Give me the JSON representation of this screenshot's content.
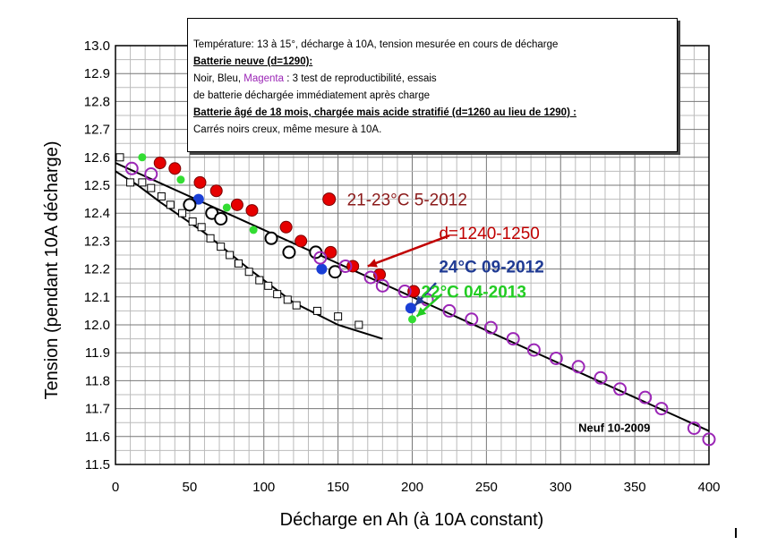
{
  "note": {
    "line1": "Température: 13 à 15°, décharge à 10A, tension mesurée en cours de décharge",
    "line2": "Batterie neuve (d=1290):",
    "line3_pre": "Noir, Bleu, ",
    "line3_mag": "Magenta",
    "line3_post": " : 3 test de reproductibilité, essais",
    "line4": "de batterie déchargée immédiatement après charge",
    "line5": "Batterie âgé de 18 mois, chargée mais acide stratifié (d=1260 au lieu de 1290) :",
    "line6": "Carrés noirs creux, même mesure à 10A."
  },
  "chart_data": {
    "type": "scatter",
    "xlabel": "Décharge en Ah (à 10A constant)",
    "ylabel": "Tension (pendant 10A décharge)",
    "xlim": [
      0,
      400
    ],
    "ylim": [
      11.5,
      13.0
    ],
    "xticks": [
      "0",
      "50",
      "100",
      "150",
      "200",
      "250",
      "300",
      "350",
      "400"
    ],
    "yticks": [
      "11.5",
      "11.6",
      "11.7",
      "11.8",
      "11.9",
      "12.0",
      "12.1",
      "12.2",
      "12.3",
      "12.4",
      "12.5",
      "12.6",
      "12.7",
      "12.8",
      "12.9",
      "13.0"
    ],
    "grid": true,
    "annotations": [
      {
        "text": "21-23°C 5-2012",
        "color": "#8b1a1a",
        "x": 156,
        "y": 12.45
      },
      {
        "text": "d=1240-1250",
        "color": "#c00000",
        "x": 218,
        "y": 12.33
      },
      {
        "text": "24°C 09-2012",
        "color": "#1f3a93",
        "x": 218,
        "y": 12.21
      },
      {
        "text": "22°C 04-2013",
        "color": "#22cc22",
        "x": 206,
        "y": 12.12
      },
      {
        "text": "Neuf 10-2009",
        "color": "#000000",
        "x": 312,
        "y": 11.64
      }
    ],
    "arrows": [
      {
        "color": "#c00000",
        "from": [
          225,
          12.32
        ],
        "to": [
          170,
          12.21
        ]
      },
      {
        "color": "#1f3a93",
        "from": [
          216,
          12.15
        ],
        "to": [
          202,
          12.07
        ]
      },
      {
        "color": "#22cc22",
        "from": [
          220,
          12.11
        ],
        "to": [
          203,
          12.03
        ]
      }
    ],
    "lines": [
      {
        "name": "",
        "color": "#000000",
        "x": [
          0,
          400
        ],
        "y": [
          12.58,
          11.62
        ]
      },
      {
        "name": "",
        "color": "#000000",
        "x": [
          0,
          15,
          30,
          60,
          90,
          120,
          150,
          180
        ],
        "y": [
          12.55,
          12.5,
          12.44,
          12.33,
          12.2,
          12.08,
          12.0,
          11.95
        ]
      }
    ],
    "series": [
      {
        "marker": "red-filled",
        "color": "#e60000",
        "x": [
          30,
          40,
          57,
          68,
          82,
          92,
          115,
          125,
          145,
          160,
          178,
          201
        ],
        "y": [
          12.58,
          12.56,
          12.51,
          12.48,
          12.43,
          12.41,
          12.35,
          12.3,
          12.26,
          12.21,
          12.18,
          12.12
        ]
      },
      {
        "marker": "blue-filled",
        "color": "#1a3fd6",
        "x": [
          56,
          139,
          199
        ],
        "y": [
          12.45,
          12.2,
          12.06
        ]
      },
      {
        "marker": "green-filled",
        "color": "#33dd33",
        "x": [
          18,
          44,
          75,
          93,
          200
        ],
        "y": [
          12.6,
          12.52,
          12.42,
          12.34,
          12.02
        ]
      },
      {
        "marker": "black-hollow",
        "color": "#000000",
        "x": [
          50,
          65,
          71,
          105,
          117,
          135,
          148
        ],
        "y": [
          12.43,
          12.4,
          12.38,
          12.31,
          12.26,
          12.26,
          12.19
        ]
      },
      {
        "marker": "purple-hollow",
        "color": "#9b26b6",
        "x": [
          11,
          24,
          138,
          155,
          172,
          180,
          195,
          210,
          225,
          240,
          253,
          268,
          282,
          297,
          312,
          327,
          340,
          357,
          368,
          390,
          400
        ],
        "y": [
          12.56,
          12.54,
          12.24,
          12.21,
          12.17,
          12.14,
          12.12,
          12.09,
          12.05,
          12.02,
          11.99,
          11.95,
          11.91,
          11.88,
          11.85,
          11.81,
          11.77,
          11.74,
          11.7,
          11.63,
          11.59
        ]
      },
      {
        "marker": "black-square",
        "color": "#000000",
        "x": [
          3,
          10,
          18,
          24,
          31,
          37,
          45,
          52,
          58,
          64,
          71,
          77,
          83,
          90,
          97,
          103,
          109,
          116,
          122,
          136,
          150,
          164
        ],
        "y": [
          12.6,
          12.51,
          12.51,
          12.49,
          12.46,
          12.43,
          12.4,
          12.37,
          12.35,
          12.31,
          12.28,
          12.25,
          12.22,
          12.19,
          12.16,
          12.14,
          12.11,
          12.09,
          12.07,
          12.05,
          12.03,
          12.0
        ]
      }
    ]
  }
}
